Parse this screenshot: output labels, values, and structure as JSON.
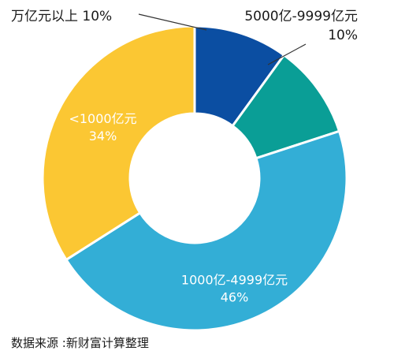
{
  "chart_data": {
    "type": "pie",
    "donut": true,
    "slices": [
      {
        "label": "万亿元以上",
        "percent_label": "10%",
        "value": 10,
        "color": "#0b4ea2",
        "label_position": "outside-top-left"
      },
      {
        "label": "5000亿-9999亿元",
        "percent_label": "10%",
        "value": 10,
        "color": "#0a9e96",
        "label_position": "outside-top-right"
      },
      {
        "label": "1000亿-4999亿元",
        "percent_label": "46%",
        "value": 46,
        "color": "#33aed6",
        "label_position": "inside"
      },
      {
        "label": "<1000亿元",
        "percent_label": "34%",
        "value": 34,
        "color": "#fbc733",
        "label_position": "inside"
      }
    ],
    "start": "top",
    "direction": "clockwise",
    "legend": "none"
  },
  "source_note": "数据来源 :新财富计算整理"
}
